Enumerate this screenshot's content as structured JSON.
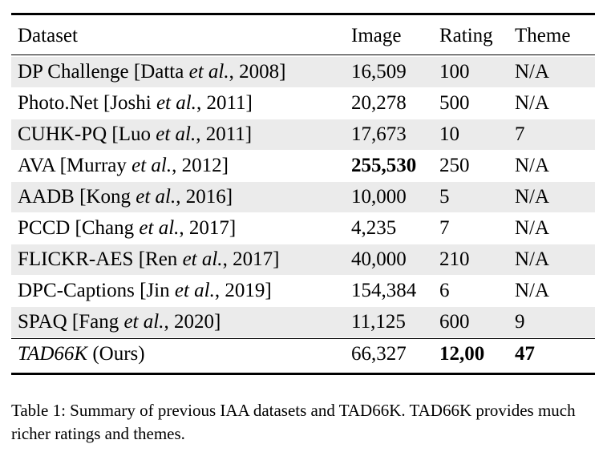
{
  "table": {
    "headers": [
      "Dataset",
      "Image",
      "Rating",
      "Theme"
    ],
    "rows": [
      {
        "name_pre": "DP Challenge [Datta ",
        "name_ital": "et al.",
        "name_post": ", 2008]",
        "image": "16,509",
        "rating": "100",
        "theme": "N/A"
      },
      {
        "name_pre": "Photo.Net [Joshi ",
        "name_ital": "et al.",
        "name_post": ", 2011]",
        "image": "20,278",
        "rating": "500",
        "theme": "N/A"
      },
      {
        "name_pre": "CUHK-PQ [Luo ",
        "name_ital": "et al.",
        "name_post": ", 2011]",
        "image": "17,673",
        "rating": "10",
        "theme": "7"
      },
      {
        "name_pre": "AVA [Murray ",
        "name_ital": "et al.",
        "name_post": ", 2012]",
        "image": "255,530",
        "rating": "250",
        "theme": "N/A"
      },
      {
        "name_pre": "AADB [Kong ",
        "name_ital": "et al.",
        "name_post": ", 2016]",
        "image": "10,000",
        "rating": "5",
        "theme": "N/A"
      },
      {
        "name_pre": "PCCD [Chang ",
        "name_ital": "et al.",
        "name_post": ", 2017]",
        "image": "4,235",
        "rating": "7",
        "theme": "N/A"
      },
      {
        "name_pre": "FLICKR-AES [Ren ",
        "name_ital": "et al.",
        "name_post": ", 2017]",
        "image": "40,000",
        "rating": "210",
        "theme": "N/A"
      },
      {
        "name_pre": "DPC-Captions [Jin ",
        "name_ital": "et al.",
        "name_post": ", 2019]",
        "image": "154,384",
        "rating": "6",
        "theme": "N/A"
      },
      {
        "name_pre": "SPAQ [Fang ",
        "name_ital": "et al.",
        "name_post": ", 2020]",
        "image": "11,125",
        "rating": "600",
        "theme": "9"
      }
    ],
    "ours": {
      "name_ital": "TAD66K",
      "name_post": " (Ours)",
      "image": "66,327",
      "rating": "12,00",
      "theme": "47"
    }
  },
  "caption": "Table 1: Summary of previous IAA datasets and TAD66K. TAD66K provides much richer ratings and themes."
}
